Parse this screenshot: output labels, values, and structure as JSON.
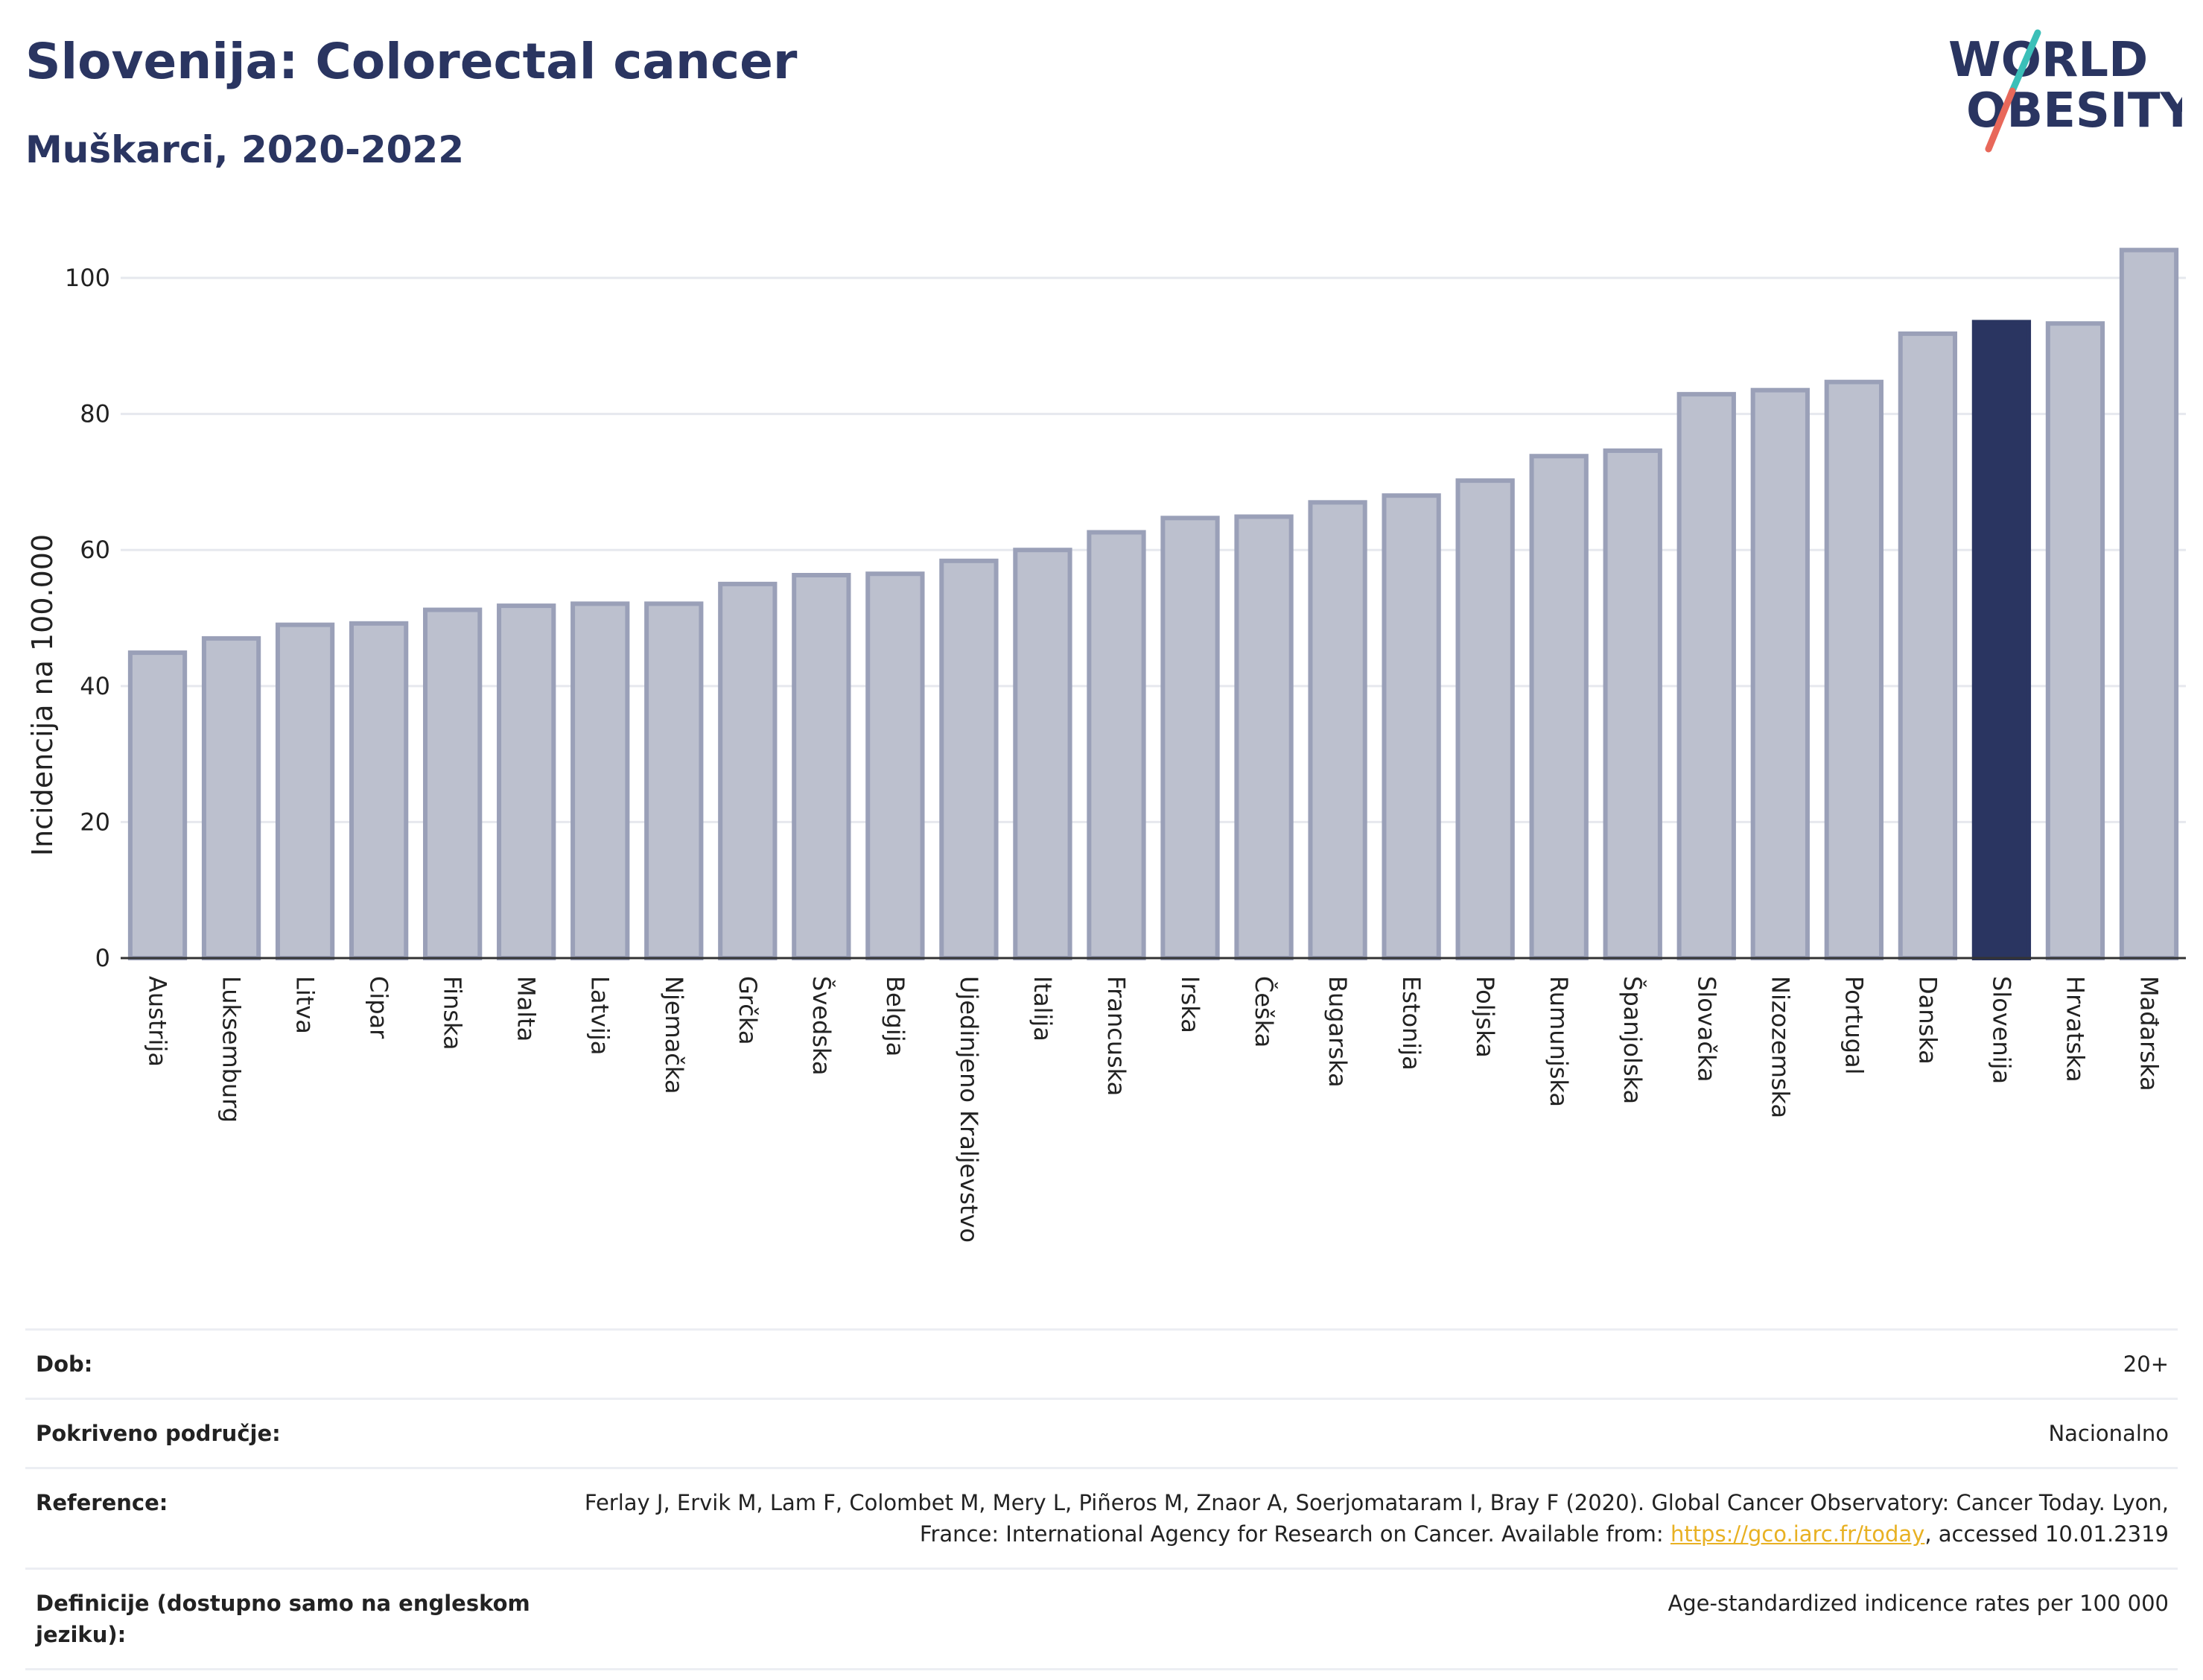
{
  "header": {
    "title": "Slovenija: Colorectal cancer",
    "subtitle": "Muškarci, 2020-2022"
  },
  "logo": {
    "line1": "WORLD",
    "line2": "OBESITY",
    "colors": {
      "text": "#2a3561",
      "slash_top": "#3bbfb8",
      "slash_bottom": "#e8685a"
    }
  },
  "colors": {
    "bar": "#bcc0ce",
    "bar_border": "#9aa0b8",
    "highlight": "#2a3561",
    "grid": "#e6e8ee"
  },
  "chart_data": {
    "type": "bar",
    "title": "",
    "xlabel": "",
    "ylabel": "Incidencija na 100.000",
    "ylim": [
      0,
      108
    ],
    "yticks": [
      0,
      20,
      40,
      60,
      80,
      100
    ],
    "grid": true,
    "highlight": "Slovenija",
    "categories": [
      "Austrija",
      "Luksemburg",
      "Litva",
      "Cipar",
      "Finska",
      "Malta",
      "Latvija",
      "Njemačka",
      "Grčka",
      "Švedska",
      "Belgija",
      "Ujedinjeno Kraljevstvo",
      "Italija",
      "Francuska",
      "Irska",
      "Češka",
      "Bugarska",
      "Estonija",
      "Poljska",
      "Rumunjska",
      "Španjolska",
      "Slovačka",
      "Nizozemska",
      "Portugal",
      "Danska",
      "Slovenija",
      "Hrvatska",
      "Mađarska"
    ],
    "values": [
      44.9,
      47.0,
      49.0,
      49.2,
      51.2,
      51.8,
      52.1,
      52.1,
      55.0,
      56.3,
      56.5,
      58.4,
      60.0,
      62.6,
      64.7,
      64.9,
      67.0,
      68.0,
      70.2,
      73.8,
      74.6,
      82.9,
      83.5,
      84.7,
      91.8,
      93.5,
      93.3,
      104.1
    ]
  },
  "meta": {
    "rows": [
      {
        "label": "Dob:",
        "value": "20+"
      },
      {
        "label": "Pokriveno područje:",
        "value": "Nacionalno"
      },
      {
        "label": "Reference:",
        "value_before": "Ferlay J, Ervik M, Lam F, Colombet M, Mery L, Piñeros M, Znaor A, Soerjomataram I, Bray F (2020). Global Cancer Observatory: Cancer Today. Lyon, France: International Agency for Research on Cancer. Available from: ",
        "link": "https://gco.iarc.fr/today",
        "value_after": ", accessed 10.01.2319"
      },
      {
        "label": "Definicije (dostupno samo na engleskom jeziku):",
        "value": "Age-standardized indicence rates per 100 000"
      }
    ]
  }
}
